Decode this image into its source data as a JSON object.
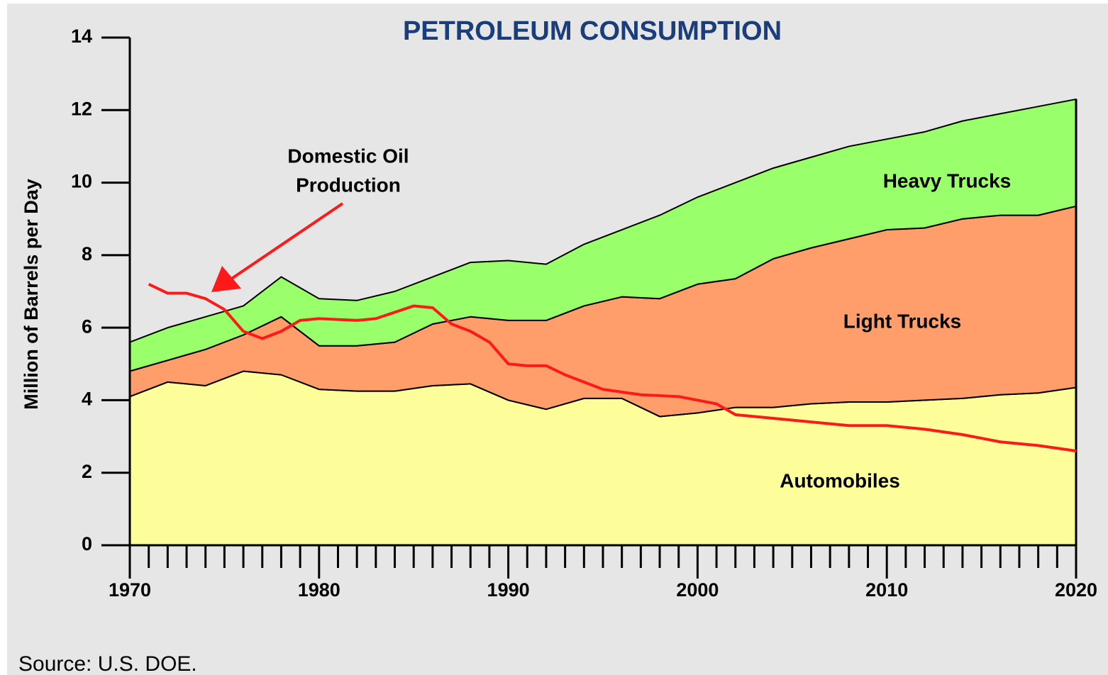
{
  "chart_data": {
    "type": "stacked_area",
    "title": "PETROLEUM CONSUMPTION",
    "y_label": "Million of Barrels per Day",
    "source": "Source: U.S. DOE.",
    "x": [
      1970,
      1972,
      1974,
      1976,
      1978,
      1980,
      1982,
      1984,
      1986,
      1988,
      1990,
      1992,
      1994,
      1996,
      1998,
      2000,
      2002,
      2004,
      2006,
      2008,
      2010,
      2012,
      2014,
      2016,
      2018,
      2020
    ],
    "series": [
      {
        "name": "Automobiles",
        "color": "#fdfd9a",
        "values": [
          4.1,
          4.5,
          4.4,
          4.8,
          4.7,
          4.3,
          4.25,
          4.25,
          4.4,
          4.45,
          4.0,
          3.75,
          4.05,
          4.05,
          3.55,
          3.65,
          3.8,
          3.8,
          3.9,
          3.95,
          3.95,
          4.0,
          4.05,
          4.15,
          4.2,
          4.35
        ]
      },
      {
        "name": "Light Trucks",
        "color": "#ff9e6a",
        "values": [
          0.7,
          0.6,
          1.0,
          1.0,
          1.6,
          1.2,
          1.25,
          1.35,
          1.7,
          1.85,
          2.2,
          2.45,
          2.55,
          2.8,
          3.25,
          3.55,
          3.55,
          4.1,
          4.3,
          4.5,
          4.75,
          4.75,
          4.95,
          4.95,
          4.9,
          5.0
        ]
      },
      {
        "name": "Heavy Trucks",
        "color": "#99ff6b",
        "values": [
          0.8,
          0.9,
          0.9,
          0.8,
          1.1,
          1.3,
          1.25,
          1.4,
          1.3,
          1.5,
          1.65,
          1.55,
          1.7,
          1.85,
          2.3,
          2.4,
          2.65,
          2.5,
          2.5,
          2.55,
          2.5,
          2.65,
          2.7,
          2.8,
          3.0,
          2.95
        ]
      }
    ],
    "domestic_oil": {
      "label": [
        "Domestic Oil",
        "Production"
      ],
      "color": "#ff1a1a",
      "x": [
        1971,
        1972,
        1973,
        1974,
        1975,
        1976,
        1977,
        1978,
        1979,
        1980,
        1982,
        1983,
        1985,
        1986,
        1987,
        1988,
        1989,
        1990,
        1991,
        1992,
        1993,
        1995,
        1997,
        1999,
        2001,
        2002,
        2004,
        2006,
        2008,
        2010,
        2012,
        2014,
        2016,
        2018,
        2020
      ],
      "values": [
        7.2,
        6.95,
        6.95,
        6.8,
        6.5,
        5.9,
        5.7,
        5.9,
        6.2,
        6.25,
        6.2,
        6.25,
        6.6,
        6.55,
        6.1,
        5.9,
        5.6,
        5.0,
        4.95,
        4.95,
        4.7,
        4.3,
        4.15,
        4.1,
        3.9,
        3.6,
        3.5,
        3.4,
        3.3,
        3.3,
        3.2,
        3.05,
        2.85,
        2.75,
        2.6
      ]
    },
    "xlim": [
      1970,
      2020
    ],
    "xticks": [
      1970,
      1980,
      1990,
      2000,
      2010,
      2020
    ],
    "xminor_step": 1,
    "ylim": [
      0,
      14
    ],
    "yticks": [
      0,
      2,
      4,
      6,
      8,
      10,
      12,
      14
    ]
  }
}
